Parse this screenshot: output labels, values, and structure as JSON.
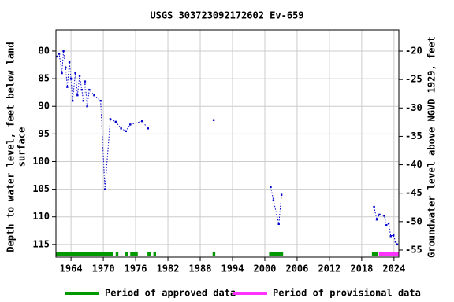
{
  "chart_data": {
    "type": "line",
    "title": "USGS 303723092172602 Ev-659",
    "y_label_lines": [
      "Depth to water level, feet below land",
      "surface"
    ],
    "y2_label": "Groundwater level above NGVD 1929, feet",
    "xlim": [
      1961.2,
      2024.9
    ],
    "xticks": [
      1964,
      1970,
      1976,
      1982,
      1988,
      1994,
      2000,
      2006,
      2012,
      2018,
      2024
    ],
    "ylim": [
      76.16,
      117.3
    ],
    "y_inverted": true,
    "yticks": [
      80,
      85,
      90,
      95,
      100,
      105,
      110,
      115
    ],
    "y2lim": [
      -56.25,
      -16.26
    ],
    "y2ticks": [
      -20,
      -25,
      -30,
      -35,
      -40,
      -45,
      -50,
      -55
    ],
    "grid": true,
    "series": [
      {
        "color": "#0000cc",
        "x": [
          1961.3,
          1961.8,
          1962.3,
          1962.6,
          1963.0,
          1963.3,
          1963.7,
          1964.0,
          1964.3,
          1964.8,
          1965.2,
          1965.6,
          1966.0,
          1966.3,
          1966.6,
          1967.0,
          1967.4,
          1968.3,
          1969.5,
          1970.3,
          1971.3,
          1972.3,
          1973.3,
          1974.2,
          1975.0,
          1977.2,
          1978.3,
          null,
          1990.5,
          null,
          2001.1,
          2001.6,
          2002.6,
          2003.1,
          null,
          2020.3,
          2020.8,
          2021.3,
          2022.2,
          2022.6,
          2023.0,
          2023.4,
          2023.9,
          2024.3,
          2024.6
        ],
        "values": [
          81,
          80.5,
          84,
          80,
          83,
          86.5,
          82,
          85,
          89,
          84,
          88,
          84.5,
          87,
          89,
          85.5,
          90,
          87,
          88,
          89,
          105,
          92.3,
          92.8,
          94,
          94.5,
          93.3,
          92.7,
          94,
          null,
          92.5,
          null,
          104.6,
          107,
          111.3,
          106,
          null,
          108.2,
          110.5,
          109.6,
          109.8,
          111.5,
          111.2,
          113.5,
          113.3,
          114.5,
          115
        ]
      }
    ],
    "periods": [
      {
        "name": "Period of approved data",
        "color": "#009900",
        "ranges": [
          [
            1961.2,
            1971.8
          ],
          [
            1972.3,
            1972.8
          ],
          [
            1974.0,
            1974.6
          ],
          [
            1975.0,
            1976.4
          ],
          [
            1978.2,
            1978.8
          ],
          [
            1979.3,
            1979.8
          ],
          [
            1990.3,
            1990.8
          ],
          [
            2000.8,
            2003.4
          ],
          [
            2019.9,
            2021.0
          ]
        ]
      },
      {
        "name": "Period of provisional data",
        "color": "#ff33ff",
        "ranges": [
          [
            2021.2,
            2024.9
          ]
        ]
      }
    ]
  }
}
